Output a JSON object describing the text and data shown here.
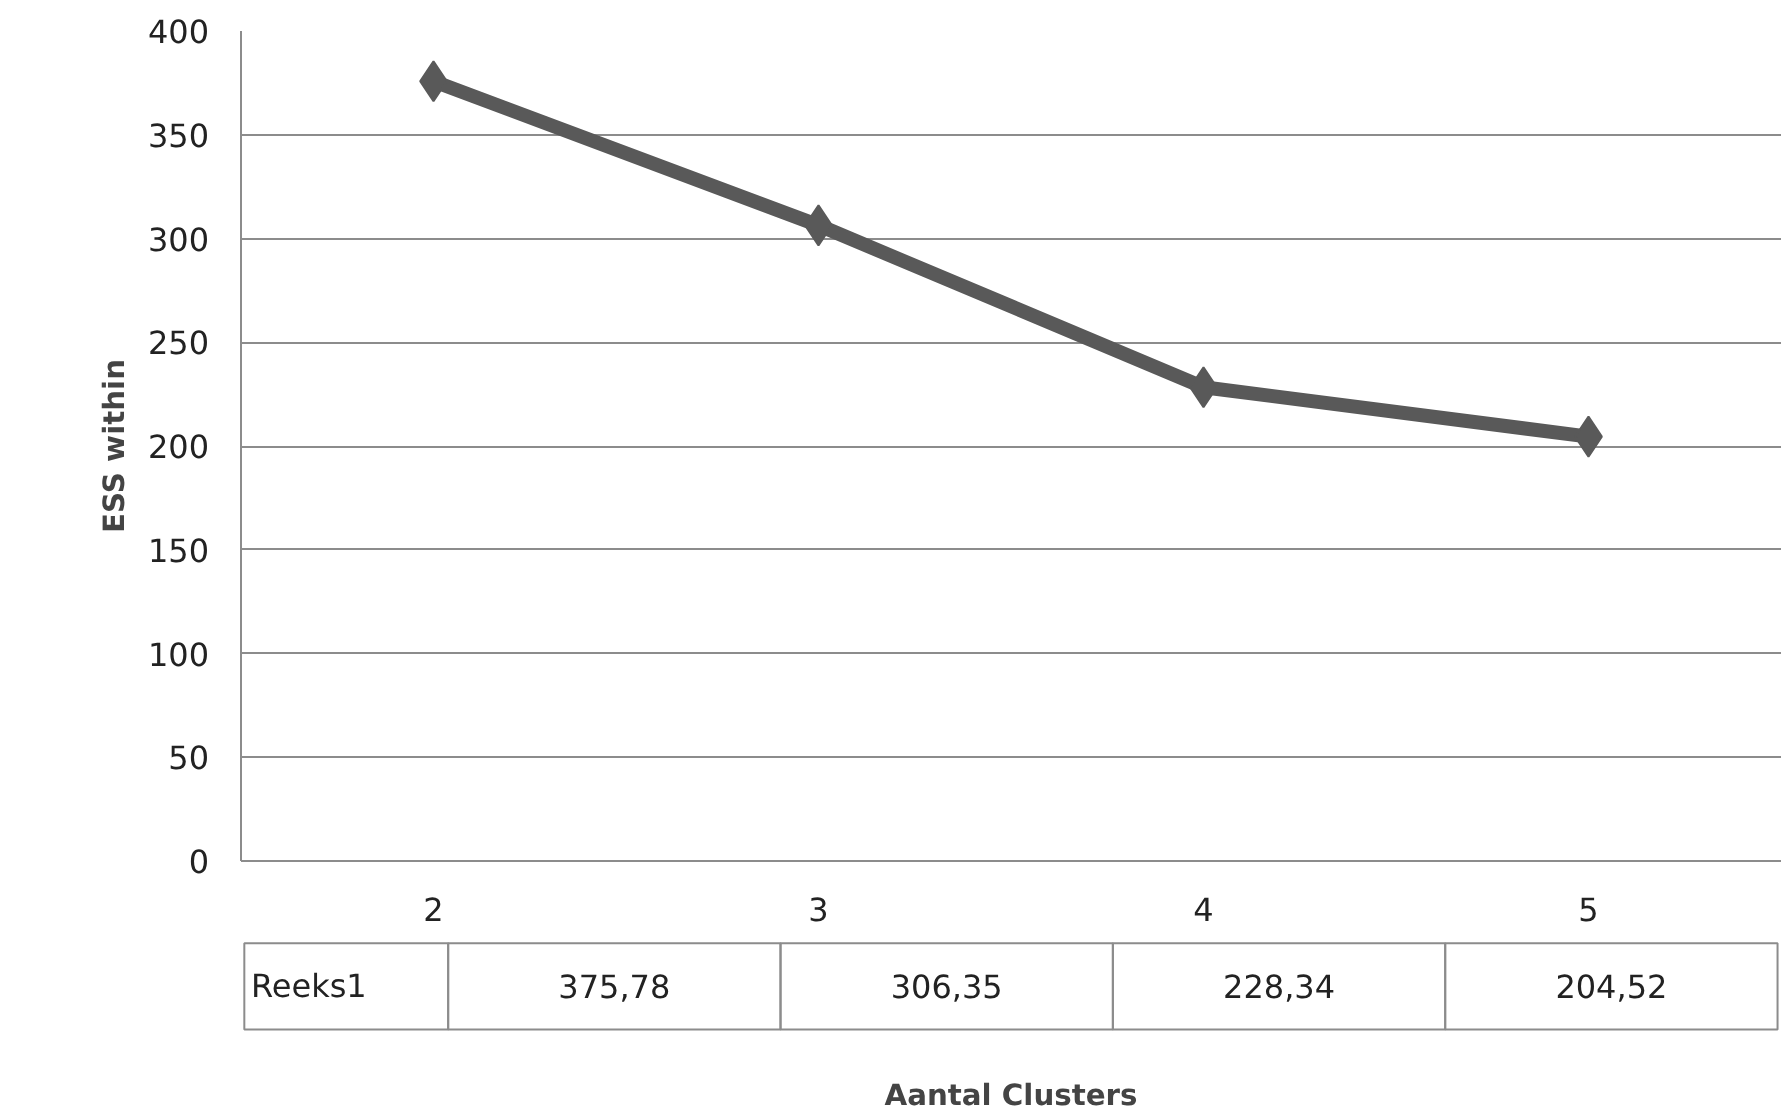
{
  "chart_data": {
    "type": "line",
    "annotations": [
      "Aantal Clusters"
    ],
    "ylabel": "ESS within",
    "categories": [
      "2",
      "3",
      "4",
      "5"
    ],
    "series": [
      {
        "name": "Reeks1",
        "color": "#595959",
        "values": [
          375.78,
          306.35,
          228.34,
          204.52
        ],
        "value_labels": [
          "375,78",
          "306,35",
          "228,34",
          "204,52"
        ]
      }
    ],
    "ylim": [
      0,
      400
    ],
    "yticks": [
      0,
      50,
      100,
      150,
      200,
      250,
      300,
      350,
      400
    ],
    "grid": "y",
    "marker": "diamond",
    "line_style": "solid",
    "legend": false
  }
}
